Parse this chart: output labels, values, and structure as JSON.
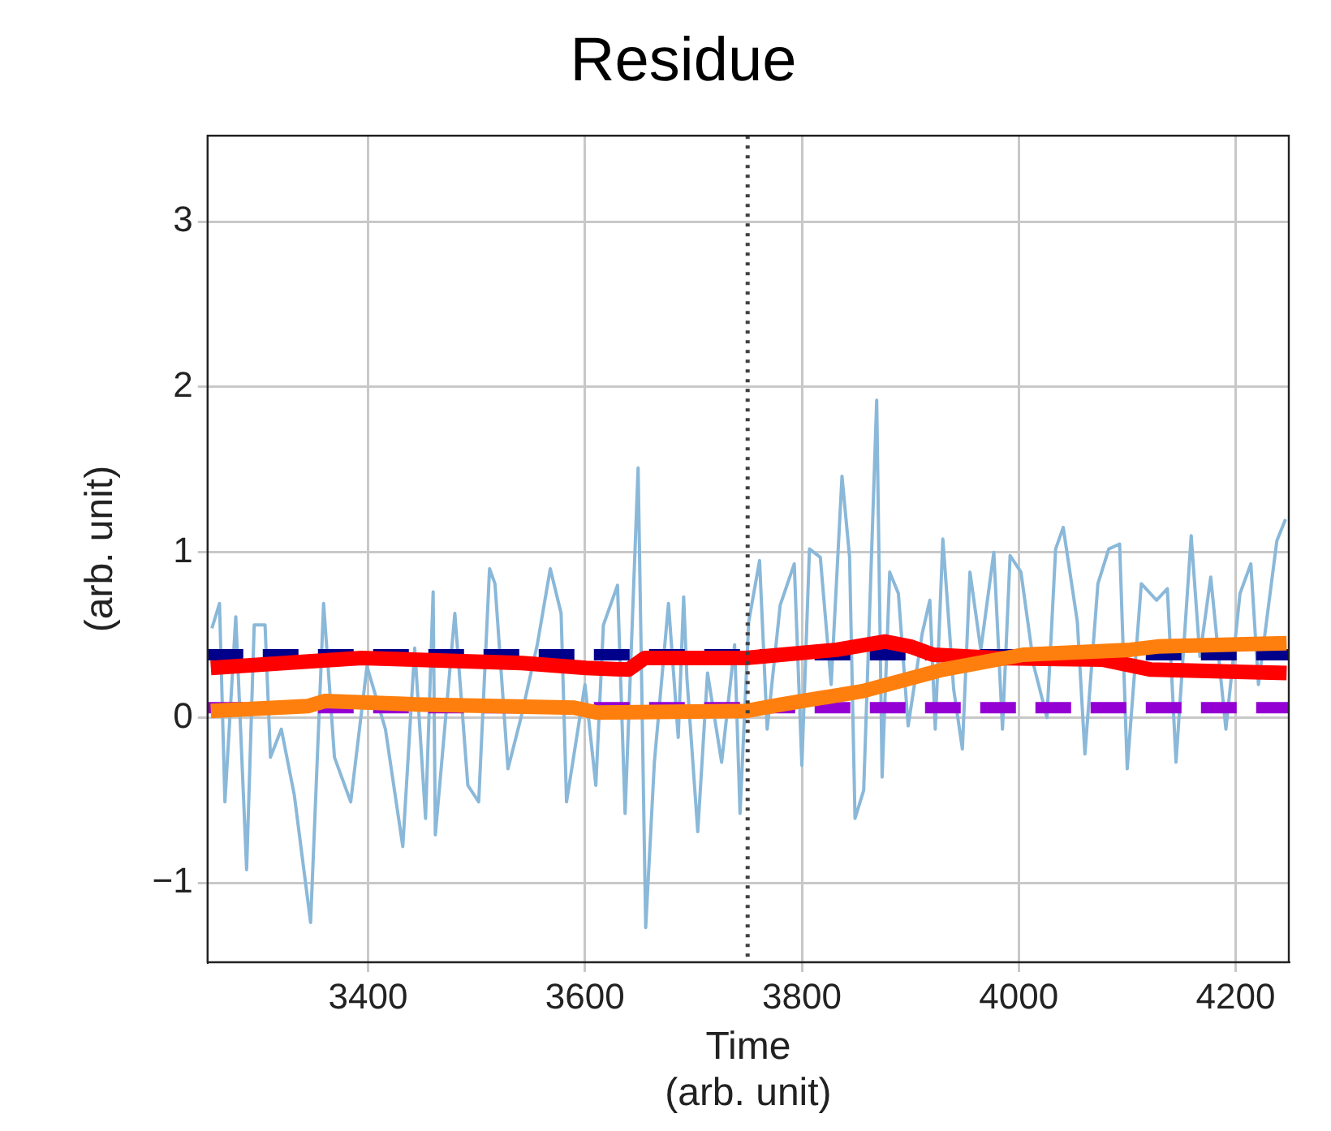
{
  "chart_data": {
    "type": "line",
    "title": "Residue",
    "xlabel": "Time\n(arb. unit)",
    "ylabel": "(arb. unit)",
    "xlim": [
      3252,
      4249
    ],
    "ylim": [
      -1.48,
      3.52
    ],
    "xticks": [
      3400,
      3600,
      3800,
      4000,
      4200
    ],
    "yticks": [
      -1,
      0,
      1,
      2,
      3
    ],
    "grid": true,
    "legend": false,
    "marker": "none",
    "ref_lines": [
      {
        "axis": "x",
        "value": 3750,
        "color": "#404040",
        "line_style": "dotted"
      }
    ],
    "series": [
      {
        "color": "#8ab8d9",
        "x": [
          3256,
          3263,
          3268,
          3278,
          3288,
          3295,
          3305,
          3310,
          3320,
          3332,
          3347,
          3359,
          3369,
          3384,
          3399,
          3416,
          3432,
          3443,
          3453,
          3460,
          3462,
          3480,
          3492,
          3502,
          3512,
          3517,
          3529,
          3541,
          3556,
          3568,
          3578,
          3583,
          3600,
          3610,
          3617,
          3630,
          3637,
          3649,
          3656,
          3664,
          3677,
          3686,
          3691,
          3694,
          3704,
          3713,
          3726,
          3738,
          3743,
          3751,
          3761,
          3768,
          3780,
          3793,
          3800,
          3807,
          3817,
          3827,
          3837,
          3844,
          3849,
          3857,
          3869,
          3874,
          3881,
          3889,
          3898,
          3911,
          3918,
          3923,
          3930,
          3940,
          3948,
          3955,
          3965,
          3977,
          3985,
          3992,
          4002,
          4014,
          4026,
          4034,
          4041,
          4054,
          4061,
          4073,
          4083,
          4093,
          4100,
          4113,
          4127,
          4137,
          4145,
          4159,
          4167,
          4177,
          4191,
          4204,
          4214,
          4221,
          4238,
          4246
        ],
        "values": [
          0.54,
          0.69,
          -0.51,
          0.61,
          -0.92,
          0.56,
          0.56,
          -0.24,
          -0.07,
          -0.47,
          -1.24,
          0.69,
          -0.24,
          -0.51,
          0.31,
          -0.07,
          -0.78,
          0.42,
          -0.61,
          0.76,
          -0.71,
          0.63,
          -0.41,
          -0.51,
          0.9,
          0.81,
          -0.31,
          0,
          0.44,
          0.9,
          0.63,
          -0.51,
          0.2,
          -0.41,
          0.56,
          0.8,
          -0.58,
          1.51,
          -1.27,
          -0.27,
          0.69,
          -0.12,
          0.73,
          0.24,
          -0.69,
          0.27,
          -0.27,
          0.44,
          -0.58,
          0.58,
          0.95,
          -0.07,
          0.68,
          0.93,
          -0.29,
          1.02,
          0.97,
          0.2,
          1.46,
          0.97,
          -0.61,
          -0.44,
          1.92,
          -0.36,
          0.88,
          0.75,
          -0.05,
          0.51,
          0.71,
          -0.07,
          1.08,
          0.17,
          -0.19,
          0.88,
          0.41,
          1,
          -0.07,
          0.98,
          0.88,
          0.31,
          0,
          1.02,
          1.15,
          0.58,
          -0.22,
          0.81,
          1.02,
          1.05,
          -0.31,
          0.81,
          0.71,
          0.78,
          -0.27,
          1.1,
          0.37,
          0.85,
          -0.07,
          0.75,
          0.93,
          0.2,
          1.07,
          1.2
        ]
      },
      {
        "color": "#00008b",
        "line_style": "dashed",
        "x": [
          3252,
          4249
        ],
        "values": [
          0.38,
          0.38
        ]
      },
      {
        "color": "#9400d3",
        "line_style": "dashed",
        "x": [
          3252,
          4249
        ],
        "values": [
          0.06,
          0.06
        ]
      },
      {
        "color": "#ff0000",
        "x": [
          3255,
          3345,
          3394,
          3542,
          3601,
          3640,
          3655,
          3748,
          3832,
          3877,
          3900,
          3921,
          3980,
          4078,
          4122,
          4247
        ],
        "values": [
          0.3,
          0.34,
          0.36,
          0.33,
          0.3,
          0.29,
          0.36,
          0.36,
          0.41,
          0.46,
          0.43,
          0.38,
          0.36,
          0.35,
          0.29,
          0.27
        ]
      },
      {
        "color": "#ff7f0e",
        "x": [
          3255,
          3345,
          3360,
          3443,
          3590,
          3611,
          3748,
          3782,
          3856,
          3930,
          4004,
          4103,
          4128,
          4247
        ],
        "values": [
          0.04,
          0.07,
          0.1,
          0.08,
          0.06,
          0.03,
          0.04,
          0.08,
          0.16,
          0.29,
          0.38,
          0.41,
          0.43,
          0.45
        ]
      }
    ]
  }
}
